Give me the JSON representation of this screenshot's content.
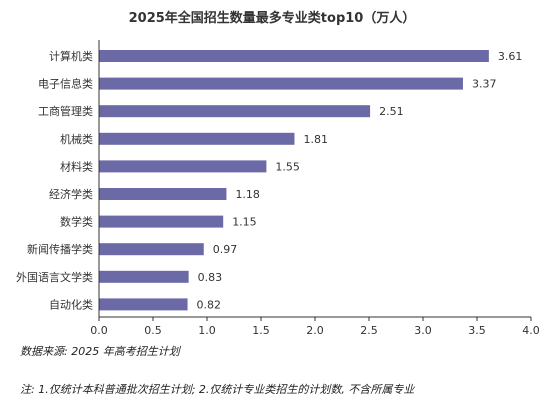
{
  "chart_data": {
    "type": "bar",
    "orientation": "horizontal",
    "title": "2025年全国招生数量最多专业类top10（万人）",
    "categories": [
      "计算机类",
      "电子信息类",
      "工商管理类",
      "机械类",
      "材料类",
      "经济学类",
      "数学类",
      "新闻传播学类",
      "外国语言文学类",
      "自动化类"
    ],
    "values": [
      3.61,
      3.37,
      2.51,
      1.81,
      1.55,
      1.18,
      1.15,
      0.97,
      0.83,
      0.82
    ],
    "value_labels": [
      "3.61",
      "3.37",
      "2.51",
      "1.81",
      "1.55",
      "1.18",
      "1.15",
      "0.97",
      "0.83",
      "0.82"
    ],
    "xlim": [
      0,
      4.0
    ],
    "xticks": [
      "0.0",
      "0.5",
      "1.0",
      "1.5",
      "2.0",
      "2.5",
      "3.0",
      "3.5",
      "4.0"
    ],
    "bar_color": "#6b6aa6",
    "grid": false,
    "xlabel": "",
    "ylabel": ""
  },
  "source": "数据来源: 2025 年高考招生计划",
  "footnote": "注: 1.仅统计本科普通批次招生计划; 2.仅统计专业类招生的计划数, 不含所属专业"
}
